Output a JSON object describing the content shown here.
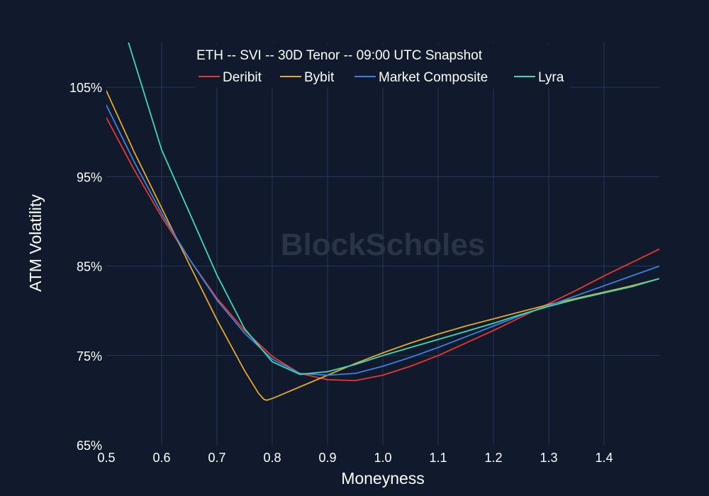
{
  "watermark": "BlockScholes",
  "colors": {
    "background": "#111a2d",
    "grid": "#24375e"
  },
  "chart_data": {
    "type": "line",
    "title": "ETH -- SVI -- 30D Tenor -- 09:00 UTC Snapshot",
    "xlabel": "Moneyness",
    "ylabel": "ATM Volatility",
    "xlim": [
      0.5,
      1.5
    ],
    "ylim": [
      65,
      110
    ],
    "xticks": [
      0.5,
      0.6,
      0.7,
      0.8,
      0.9,
      1.0,
      1.1,
      1.2,
      1.3,
      1.4
    ],
    "xtick_labels": [
      "0.5",
      "0.6",
      "0.7",
      "0.8",
      "0.9",
      "1.0",
      "1.1",
      "1.2",
      "1.3",
      "1.4"
    ],
    "yticks": [
      65,
      75,
      85,
      95,
      105
    ],
    "ytick_labels": [
      "65%",
      "75%",
      "85%",
      "95%",
      "105%"
    ],
    "grid": true,
    "legend_position": "top-center",
    "series": [
      {
        "name": "Deribit",
        "color": "#e8392b",
        "x": [
          0.5,
          0.55,
          0.6,
          0.65,
          0.7,
          0.75,
          0.8,
          0.85,
          0.9,
          0.95,
          1.0,
          1.05,
          1.1,
          1.15,
          1.2,
          1.25,
          1.3,
          1.35,
          1.4,
          1.45,
          1.5
        ],
        "y": [
          101.6,
          95.8,
          90.5,
          85.8,
          81.4,
          77.8,
          74.9,
          73.0,
          72.3,
          72.2,
          72.8,
          73.8,
          75.0,
          76.4,
          77.8,
          79.3,
          80.8,
          82.3,
          83.9,
          85.4,
          86.9
        ]
      },
      {
        "name": "Bybit",
        "color": "#e3a72a",
        "x": [
          0.5,
          0.55,
          0.6,
          0.65,
          0.7,
          0.75,
          0.775,
          0.785,
          0.79,
          0.8,
          0.85,
          0.9,
          0.95,
          1.0,
          1.05,
          1.1,
          1.15,
          1.2,
          1.25,
          1.3,
          1.35,
          1.4,
          1.45,
          1.5
        ],
        "y": [
          104.6,
          97.8,
          91.5,
          85.2,
          79.0,
          73.3,
          70.8,
          70.1,
          70.0,
          70.2,
          71.5,
          72.8,
          74.1,
          75.3,
          76.4,
          77.4,
          78.3,
          79.1,
          79.9,
          80.7,
          81.4,
          82.1,
          82.8,
          83.6
        ]
      },
      {
        "name": "Market Composite",
        "color": "#3b82e0",
        "x": [
          0.5,
          0.55,
          0.6,
          0.65,
          0.7,
          0.75,
          0.8,
          0.85,
          0.9,
          0.95,
          1.0,
          1.05,
          1.1,
          1.15,
          1.2,
          1.25,
          1.3,
          1.35,
          1.4,
          1.45,
          1.5
        ],
        "y": [
          103.0,
          96.7,
          90.9,
          85.8,
          81.2,
          77.5,
          74.6,
          73.0,
          72.8,
          73.0,
          73.8,
          74.8,
          75.9,
          77.1,
          78.3,
          79.5,
          80.6,
          81.7,
          82.8,
          83.9,
          85.0
        ]
      },
      {
        "name": "Lyra",
        "color": "#3dd9b3",
        "x": [
          0.5,
          0.54,
          0.6,
          0.65,
          0.7,
          0.75,
          0.8,
          0.85,
          0.9,
          0.95,
          1.0,
          1.05,
          1.1,
          1.15,
          1.2,
          1.25,
          1.3,
          1.35,
          1.4,
          1.45,
          1.5
        ],
        "y": [
          114.0,
          110.0,
          98.0,
          91.0,
          84.0,
          78.0,
          74.3,
          72.9,
          73.2,
          74.0,
          75.0,
          75.9,
          76.8,
          77.7,
          78.6,
          79.6,
          80.5,
          81.3,
          82.0,
          82.7,
          83.6
        ]
      }
    ]
  }
}
